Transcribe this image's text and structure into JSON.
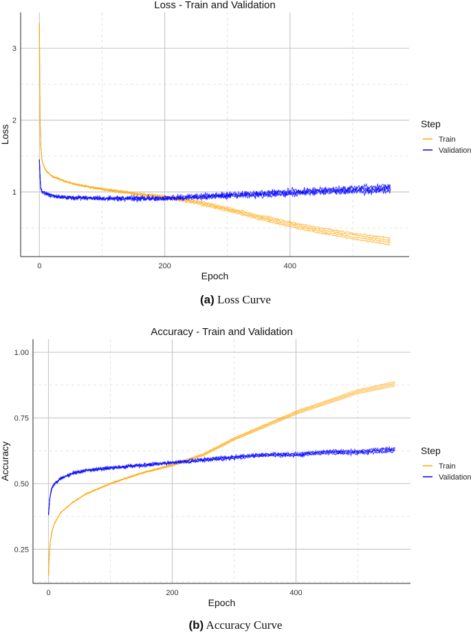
{
  "chart_data": [
    {
      "type": "line",
      "title": "Loss - Train and Validation",
      "xlabel": "Epoch",
      "ylabel": "Loss",
      "xlim": [
        -30,
        590
      ],
      "ylim": [
        0.1,
        3.5
      ],
      "xticks": [
        0,
        200,
        400
      ],
      "xtick_labels": [
        "0",
        "200",
        "400"
      ],
      "yticks": [
        1,
        2,
        3
      ],
      "ytick_labels": [
        "1",
        "2",
        "3"
      ],
      "grid": true,
      "legend": {
        "title": "Step",
        "position": "right"
      },
      "series": [
        {
          "name": "Train",
          "color": "#FFA500",
          "x": [
            0,
            1,
            2,
            4,
            6,
            10,
            20,
            40,
            60,
            100,
            150,
            200,
            250,
            300,
            350,
            400,
            450,
            500,
            560
          ],
          "y": [
            3.35,
            2.0,
            1.65,
            1.45,
            1.38,
            1.3,
            1.22,
            1.15,
            1.1,
            1.04,
            0.98,
            0.93,
            0.86,
            0.76,
            0.65,
            0.55,
            0.46,
            0.39,
            0.31
          ]
        },
        {
          "name": "Validation",
          "color": "#0000FF",
          "x": [
            0,
            1,
            2,
            5,
            10,
            20,
            50,
            100,
            150,
            200,
            250,
            300,
            350,
            400,
            450,
            500,
            560
          ],
          "y": [
            1.45,
            1.2,
            1.05,
            1.0,
            0.98,
            0.95,
            0.92,
            0.91,
            0.91,
            0.91,
            0.93,
            0.95,
            0.97,
            0.99,
            1.01,
            1.03,
            1.05
          ]
        }
      ]
    },
    {
      "type": "line",
      "title": "Accuracy - Train and Validation",
      "xlabel": "Epoch",
      "ylabel": "Accuracy",
      "xlim": [
        -25,
        585
      ],
      "ylim": [
        0.12,
        1.05
      ],
      "xticks": [
        0,
        200,
        400
      ],
      "xtick_labels": [
        "0",
        "200",
        "400"
      ],
      "yticks": [
        0.25,
        0.5,
        0.75,
        1.0
      ],
      "ytick_labels": [
        "0.25",
        "0.50",
        "0.75",
        "1.00"
      ],
      "grid": true,
      "legend": {
        "title": "Step",
        "position": "right"
      },
      "series": [
        {
          "name": "Train",
          "color": "#FFA500",
          "x": [
            0,
            1,
            3,
            6,
            10,
            20,
            40,
            60,
            100,
            150,
            200,
            250,
            300,
            350,
            400,
            450,
            500,
            560
          ],
          "y": [
            0.15,
            0.22,
            0.28,
            0.32,
            0.35,
            0.39,
            0.43,
            0.46,
            0.5,
            0.54,
            0.57,
            0.61,
            0.67,
            0.72,
            0.77,
            0.81,
            0.85,
            0.88
          ]
        },
        {
          "name": "Validation",
          "color": "#0000FF",
          "x": [
            0,
            2,
            5,
            10,
            20,
            40,
            60,
            100,
            150,
            200,
            250,
            300,
            350,
            400,
            450,
            500,
            560
          ],
          "y": [
            0.38,
            0.44,
            0.48,
            0.5,
            0.52,
            0.54,
            0.55,
            0.56,
            0.57,
            0.58,
            0.59,
            0.6,
            0.61,
            0.61,
            0.62,
            0.62,
            0.63
          ]
        }
      ]
    }
  ],
  "captions": [
    {
      "label": "(a)",
      "text": "Loss Curve"
    },
    {
      "label": "(b)",
      "text": "Accuracy Curve"
    }
  ]
}
